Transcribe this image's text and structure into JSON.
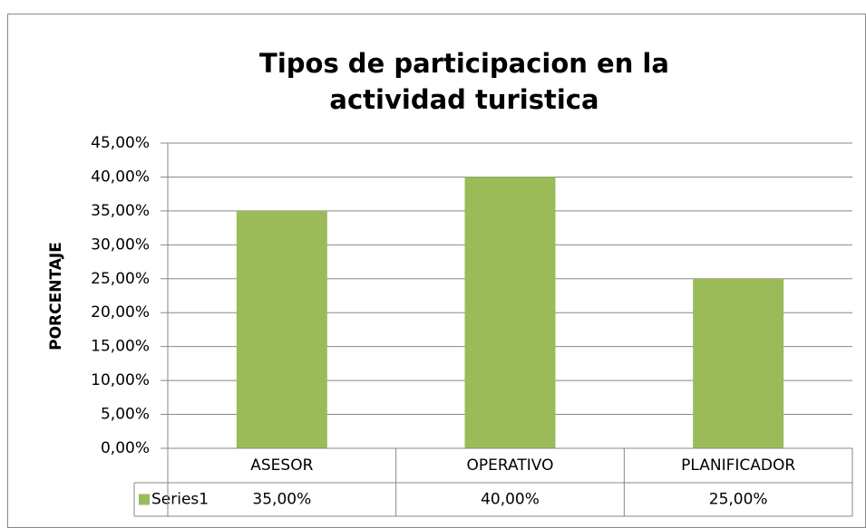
{
  "chart_data": {
    "type": "bar",
    "title": "Tipos de participacion en la actividad turistica",
    "y_label": "PORCENTAJE",
    "categories": [
      "ASESOR",
      "OPERATIVO",
      "PLANIFICADOR"
    ],
    "series": [
      {
        "name": "Series1",
        "color": "#9bbb59",
        "values": [
          35,
          40,
          25
        ],
        "value_labels": [
          "35,00%",
          "40,00%",
          "25,00%"
        ]
      }
    ],
    "ylim": [
      0,
      45
    ],
    "yticks": [
      {
        "value": 0,
        "label": "0,00%"
      },
      {
        "value": 5,
        "label": "5,00%"
      },
      {
        "value": 10,
        "label": "10,00%"
      },
      {
        "value": 15,
        "label": "15,00%"
      },
      {
        "value": 20,
        "label": "20,00%"
      },
      {
        "value": 25,
        "label": "25,00%"
      },
      {
        "value": 30,
        "label": "30,00%"
      },
      {
        "value": 35,
        "label": "35,00%"
      },
      {
        "value": 40,
        "label": "40,00%"
      },
      {
        "value": 45,
        "label": "45,00%"
      }
    ],
    "grid": true,
    "data_table": true
  }
}
